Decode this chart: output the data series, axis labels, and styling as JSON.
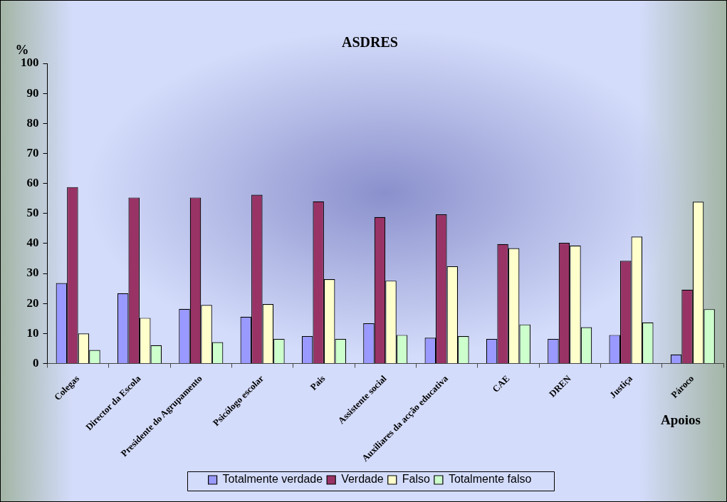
{
  "chart_data": {
    "type": "bar",
    "title": "ASDRES",
    "ylabel": "%",
    "xlabel": "Apoios",
    "categories": [
      "Colegas",
      "Director da Escola",
      "Presidente do Agrupamento",
      "Psicólogo escolar",
      "Pais",
      "Assistente social",
      "Auxiliares da acção educativa",
      "CAE",
      "DREN",
      "Justiça",
      "Pároco"
    ],
    "series": [
      {
        "name": "Totalmente verdade",
        "color": "#9999ff",
        "values": [
          26.8,
          23.4,
          18.2,
          15.6,
          9.1,
          13.4,
          8.6,
          8.2,
          8.2,
          9.5,
          3.0
        ]
      },
      {
        "name": "Verdade",
        "color": "#993366",
        "values": [
          58.8,
          55.3,
          55.3,
          56.2,
          54.0,
          48.8,
          49.7,
          39.8,
          40.2,
          34.2,
          24.6
        ]
      },
      {
        "name": "Falso",
        "color": "#ffffcc",
        "values": [
          10.0,
          15.2,
          19.5,
          19.8,
          28.1,
          27.6,
          32.4,
          38.4,
          39.3,
          42.3,
          53.9
        ]
      },
      {
        "name": "Totalmente falso",
        "color": "#ccffcc",
        "values": [
          4.5,
          6.1,
          7.1,
          8.2,
          8.2,
          9.5,
          9.1,
          13.0,
          12.1,
          13.7,
          18.1
        ]
      }
    ],
    "ylim": [
      0,
      100
    ],
    "yticks": [
      0,
      10,
      20,
      30,
      40,
      50,
      60,
      70,
      80,
      90,
      100
    ],
    "grid": false,
    "legend": "bottom"
  }
}
